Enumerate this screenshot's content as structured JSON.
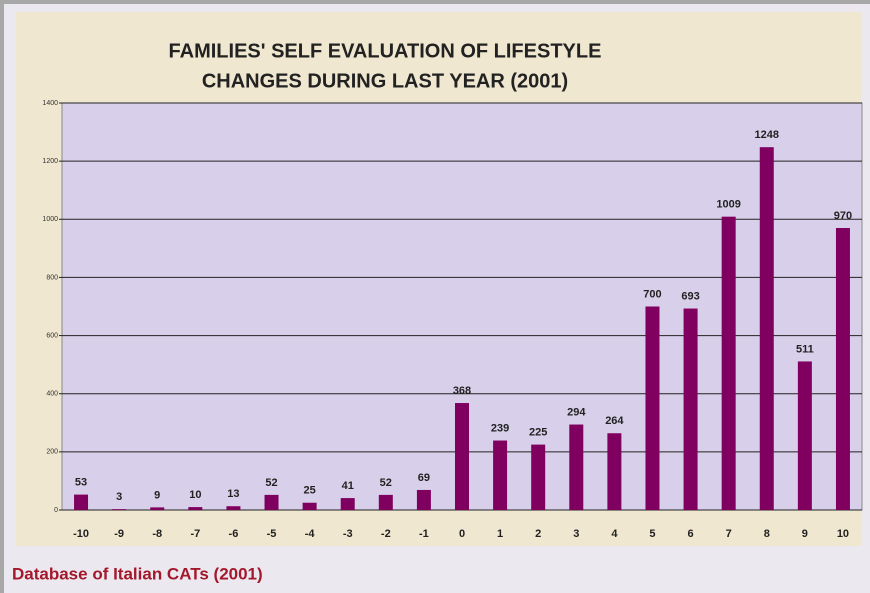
{
  "chart_data": {
    "type": "bar",
    "title": [
      "FAMILIES' SELF EVALUATION OF LIFESTYLE",
      "CHANGES DURING LAST YEAR (2001)"
    ],
    "categories": [
      "-10",
      "-9",
      "-8",
      "-7",
      "-6",
      "-5",
      "-4",
      "-3",
      "-2",
      "-1",
      "0",
      "1",
      "2",
      "3",
      "4",
      "5",
      "6",
      "7",
      "8",
      "9",
      "10"
    ],
    "values": [
      53,
      3,
      9,
      10,
      13,
      52,
      25,
      41,
      52,
      69,
      368,
      239,
      225,
      294,
      264,
      700,
      693,
      1009,
      1248,
      511,
      970
    ],
    "color": "#800060",
    "ylim": [
      0,
      1400
    ],
    "yticks": [
      0,
      200,
      400,
      600,
      800,
      1000,
      1200,
      1400
    ],
    "grid": true,
    "caption": "Database of Italian CATs (2001)"
  }
}
